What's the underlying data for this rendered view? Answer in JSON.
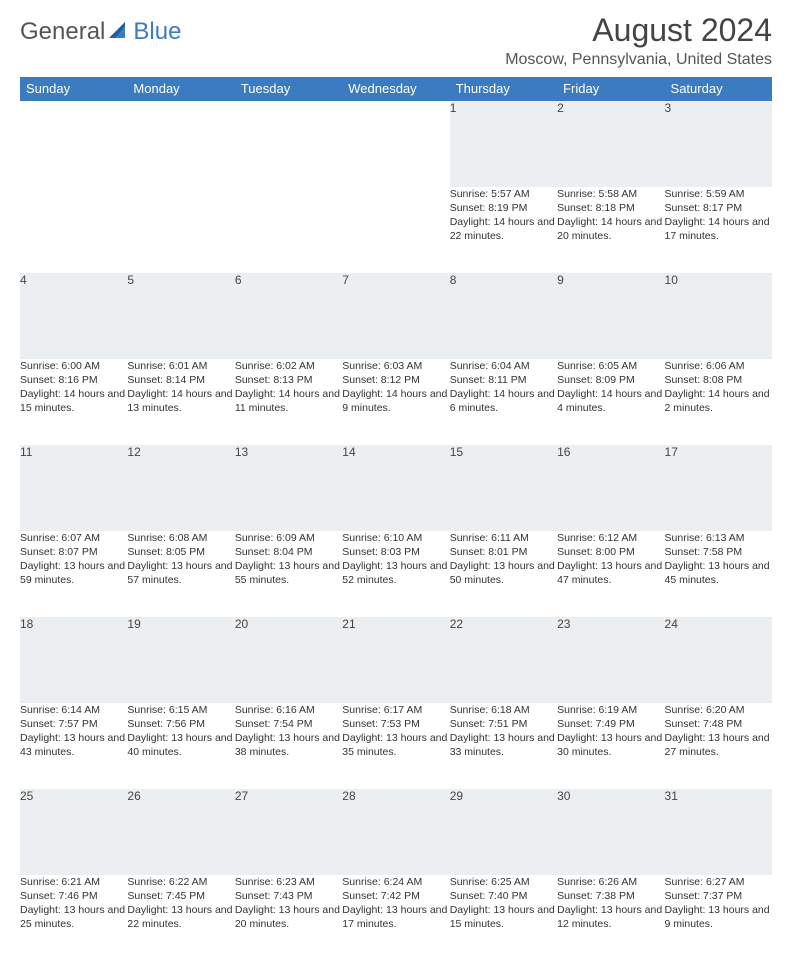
{
  "logo": {
    "text_general": "General",
    "text_blue": "Blue"
  },
  "title": "August 2024",
  "location": "Moscow, Pennsylvania, United States",
  "colors": {
    "header_bg": "#3b7bbf",
    "header_text": "#ffffff",
    "daynum_bg": "#eceff1",
    "row_border": "#3b7bbf",
    "body_text": "#333333",
    "title_text": "#444444",
    "location_text": "#555555",
    "logo_blue": "#3b7bbf",
    "logo_gray": "#555555"
  },
  "typography": {
    "title_fontsize": 32,
    "location_fontsize": 16,
    "dayheader_fontsize": 13,
    "daynum_fontsize": 12,
    "detail_fontsize": 10.5
  },
  "day_headers": [
    "Sunday",
    "Monday",
    "Tuesday",
    "Wednesday",
    "Thursday",
    "Friday",
    "Saturday"
  ],
  "weeks": [
    {
      "nums": [
        "",
        "",
        "",
        "",
        "1",
        "2",
        "3"
      ],
      "details": [
        null,
        null,
        null,
        null,
        {
          "sunrise": "Sunrise: 5:57 AM",
          "sunset": "Sunset: 8:19 PM",
          "daylight": "Daylight: 14 hours and 22 minutes."
        },
        {
          "sunrise": "Sunrise: 5:58 AM",
          "sunset": "Sunset: 8:18 PM",
          "daylight": "Daylight: 14 hours and 20 minutes."
        },
        {
          "sunrise": "Sunrise: 5:59 AM",
          "sunset": "Sunset: 8:17 PM",
          "daylight": "Daylight: 14 hours and 17 minutes."
        }
      ]
    },
    {
      "nums": [
        "4",
        "5",
        "6",
        "7",
        "8",
        "9",
        "10"
      ],
      "details": [
        {
          "sunrise": "Sunrise: 6:00 AM",
          "sunset": "Sunset: 8:16 PM",
          "daylight": "Daylight: 14 hours and 15 minutes."
        },
        {
          "sunrise": "Sunrise: 6:01 AM",
          "sunset": "Sunset: 8:14 PM",
          "daylight": "Daylight: 14 hours and 13 minutes."
        },
        {
          "sunrise": "Sunrise: 6:02 AM",
          "sunset": "Sunset: 8:13 PM",
          "daylight": "Daylight: 14 hours and 11 minutes."
        },
        {
          "sunrise": "Sunrise: 6:03 AM",
          "sunset": "Sunset: 8:12 PM",
          "daylight": "Daylight: 14 hours and 9 minutes."
        },
        {
          "sunrise": "Sunrise: 6:04 AM",
          "sunset": "Sunset: 8:11 PM",
          "daylight": "Daylight: 14 hours and 6 minutes."
        },
        {
          "sunrise": "Sunrise: 6:05 AM",
          "sunset": "Sunset: 8:09 PM",
          "daylight": "Daylight: 14 hours and 4 minutes."
        },
        {
          "sunrise": "Sunrise: 6:06 AM",
          "sunset": "Sunset: 8:08 PM",
          "daylight": "Daylight: 14 hours and 2 minutes."
        }
      ]
    },
    {
      "nums": [
        "11",
        "12",
        "13",
        "14",
        "15",
        "16",
        "17"
      ],
      "details": [
        {
          "sunrise": "Sunrise: 6:07 AM",
          "sunset": "Sunset: 8:07 PM",
          "daylight": "Daylight: 13 hours and 59 minutes."
        },
        {
          "sunrise": "Sunrise: 6:08 AM",
          "sunset": "Sunset: 8:05 PM",
          "daylight": "Daylight: 13 hours and 57 minutes."
        },
        {
          "sunrise": "Sunrise: 6:09 AM",
          "sunset": "Sunset: 8:04 PM",
          "daylight": "Daylight: 13 hours and 55 minutes."
        },
        {
          "sunrise": "Sunrise: 6:10 AM",
          "sunset": "Sunset: 8:03 PM",
          "daylight": "Daylight: 13 hours and 52 minutes."
        },
        {
          "sunrise": "Sunrise: 6:11 AM",
          "sunset": "Sunset: 8:01 PM",
          "daylight": "Daylight: 13 hours and 50 minutes."
        },
        {
          "sunrise": "Sunrise: 6:12 AM",
          "sunset": "Sunset: 8:00 PM",
          "daylight": "Daylight: 13 hours and 47 minutes."
        },
        {
          "sunrise": "Sunrise: 6:13 AM",
          "sunset": "Sunset: 7:58 PM",
          "daylight": "Daylight: 13 hours and 45 minutes."
        }
      ]
    },
    {
      "nums": [
        "18",
        "19",
        "20",
        "21",
        "22",
        "23",
        "24"
      ],
      "details": [
        {
          "sunrise": "Sunrise: 6:14 AM",
          "sunset": "Sunset: 7:57 PM",
          "daylight": "Daylight: 13 hours and 43 minutes."
        },
        {
          "sunrise": "Sunrise: 6:15 AM",
          "sunset": "Sunset: 7:56 PM",
          "daylight": "Daylight: 13 hours and 40 minutes."
        },
        {
          "sunrise": "Sunrise: 6:16 AM",
          "sunset": "Sunset: 7:54 PM",
          "daylight": "Daylight: 13 hours and 38 minutes."
        },
        {
          "sunrise": "Sunrise: 6:17 AM",
          "sunset": "Sunset: 7:53 PM",
          "daylight": "Daylight: 13 hours and 35 minutes."
        },
        {
          "sunrise": "Sunrise: 6:18 AM",
          "sunset": "Sunset: 7:51 PM",
          "daylight": "Daylight: 13 hours and 33 minutes."
        },
        {
          "sunrise": "Sunrise: 6:19 AM",
          "sunset": "Sunset: 7:49 PM",
          "daylight": "Daylight: 13 hours and 30 minutes."
        },
        {
          "sunrise": "Sunrise: 6:20 AM",
          "sunset": "Sunset: 7:48 PM",
          "daylight": "Daylight: 13 hours and 27 minutes."
        }
      ]
    },
    {
      "nums": [
        "25",
        "26",
        "27",
        "28",
        "29",
        "30",
        "31"
      ],
      "details": [
        {
          "sunrise": "Sunrise: 6:21 AM",
          "sunset": "Sunset: 7:46 PM",
          "daylight": "Daylight: 13 hours and 25 minutes."
        },
        {
          "sunrise": "Sunrise: 6:22 AM",
          "sunset": "Sunset: 7:45 PM",
          "daylight": "Daylight: 13 hours and 22 minutes."
        },
        {
          "sunrise": "Sunrise: 6:23 AM",
          "sunset": "Sunset: 7:43 PM",
          "daylight": "Daylight: 13 hours and 20 minutes."
        },
        {
          "sunrise": "Sunrise: 6:24 AM",
          "sunset": "Sunset: 7:42 PM",
          "daylight": "Daylight: 13 hours and 17 minutes."
        },
        {
          "sunrise": "Sunrise: 6:25 AM",
          "sunset": "Sunset: 7:40 PM",
          "daylight": "Daylight: 13 hours and 15 minutes."
        },
        {
          "sunrise": "Sunrise: 6:26 AM",
          "sunset": "Sunset: 7:38 PM",
          "daylight": "Daylight: 13 hours and 12 minutes."
        },
        {
          "sunrise": "Sunrise: 6:27 AM",
          "sunset": "Sunset: 7:37 PM",
          "daylight": "Daylight: 13 hours and 9 minutes."
        }
      ]
    }
  ]
}
